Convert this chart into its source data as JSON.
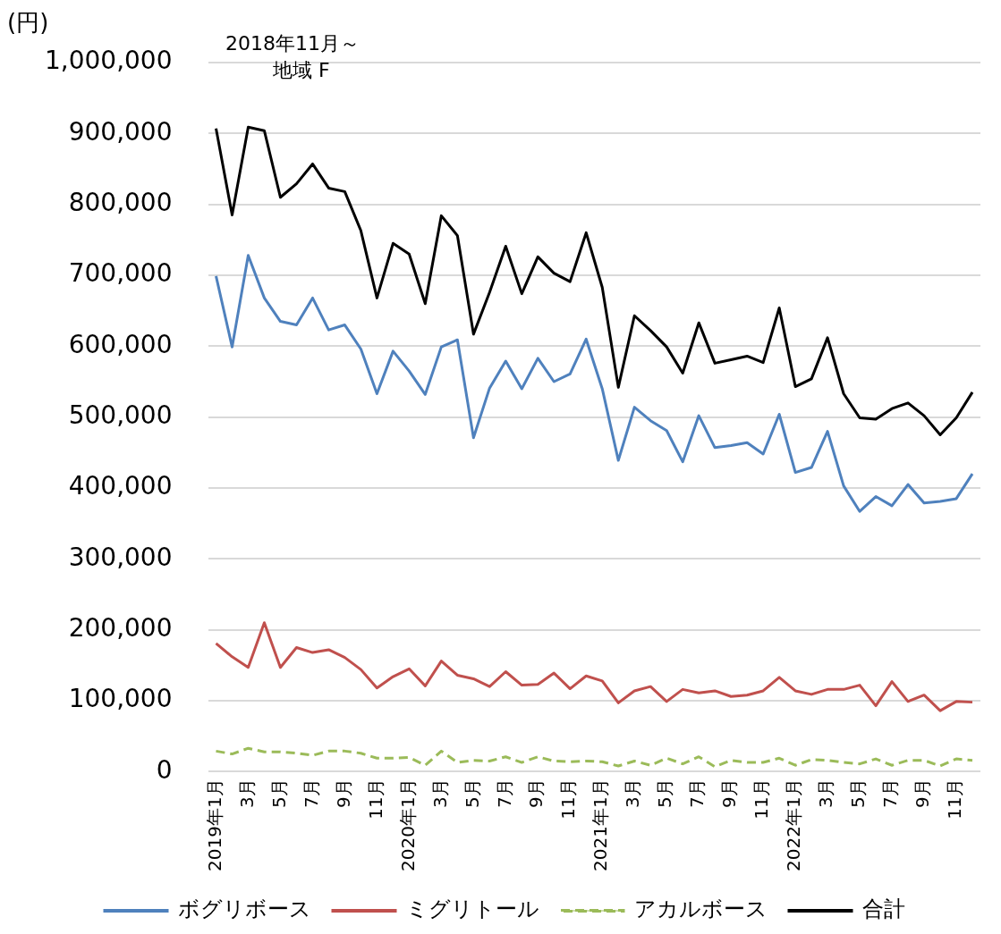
{
  "chart_data": {
    "type": "line",
    "title": "2018年11月～",
    "subtitle": "地域 F",
    "ylabel": "(円)",
    "categories": [
      "2019年1月",
      null,
      "3月",
      null,
      "5月",
      null,
      "7月",
      null,
      "9月",
      null,
      "11月",
      null,
      "2020年1月",
      null,
      "3月",
      null,
      "5月",
      null,
      "7月",
      null,
      "9月",
      null,
      "11月",
      null,
      "2021年1月",
      null,
      "3月",
      null,
      "5月",
      null,
      "7月",
      null,
      "9月",
      null,
      "11月",
      null,
      "2022年1月",
      null,
      "3月",
      null,
      "5月",
      null,
      "7月",
      null,
      "9月",
      null,
      "11月",
      null
    ],
    "series": [
      {
        "name": "ボグリボース",
        "color": "#4f81bd",
        "values": [
          699000,
          599000,
          728000,
          668000,
          635000,
          630000,
          668000,
          623000,
          630000,
          596000,
          533000,
          593000,
          565000,
          532000,
          599000,
          609000,
          471000,
          541000,
          579000,
          540000,
          583000,
          550000,
          561000,
          610000,
          540000,
          439000,
          514000,
          495000,
          481000,
          437000,
          502000,
          457000,
          460000,
          464000,
          448000,
          504000,
          422000,
          429000,
          480000,
          403000,
          367000,
          388000,
          375000,
          405000,
          379000,
          381000,
          385000,
          420000
        ]
      },
      {
        "name": "ミグリトール",
        "color": "#c0504d",
        "values": [
          181000,
          162000,
          147000,
          210000,
          147000,
          175000,
          168000,
          172000,
          161000,
          144000,
          118000,
          134000,
          145000,
          121000,
          156000,
          136000,
          131000,
          120000,
          141000,
          122000,
          123000,
          139000,
          117000,
          135000,
          128000,
          97000,
          114000,
          120000,
          99000,
          116000,
          111000,
          114000,
          106000,
          108000,
          114000,
          133000,
          114000,
          109000,
          116000,
          116000,
          122000,
          93000,
          127000,
          99000,
          108000,
          86000,
          99000,
          98000
        ]
      },
      {
        "name": "アカルボース",
        "color": "#9bbb59",
        "line_style": "dashed",
        "values": [
          29000,
          25000,
          33000,
          28000,
          28000,
          26000,
          23000,
          29000,
          29000,
          26000,
          19000,
          19000,
          20000,
          9000,
          29000,
          13000,
          16000,
          15000,
          21000,
          13000,
          21000,
          15000,
          14000,
          15000,
          14000,
          8000,
          15000,
          9000,
          19000,
          11000,
          21000,
          7000,
          16000,
          13000,
          13000,
          19000,
          9000,
          17000,
          16000,
          13000,
          11000,
          18000,
          9000,
          16000,
          16000,
          8000,
          18000,
          16000
        ]
      },
      {
        "name": "合計",
        "color": "#000000",
        "values": [
          907000,
          785000,
          909000,
          904000,
          810000,
          829000,
          857000,
          823000,
          818000,
          763000,
          668000,
          745000,
          730000,
          660000,
          784000,
          756000,
          617000,
          676000,
          741000,
          674000,
          726000,
          703000,
          691000,
          760000,
          683000,
          542000,
          643000,
          622000,
          599000,
          562000,
          633000,
          576000,
          581000,
          586000,
          577000,
          654000,
          543000,
          554000,
          612000,
          533000,
          499000,
          497000,
          512000,
          520000,
          502000,
          475000,
          499000,
          535000
        ]
      }
    ],
    "ylim": [
      0,
      1000000
    ],
    "yticks": [
      0,
      {
        "value": 100000,
        "label": "100,000"
      },
      {
        "value": 200000,
        "label": "200,000"
      },
      {
        "value": 300000,
        "label": "300,000"
      },
      {
        "value": 400000,
        "label": "400,000"
      },
      {
        "value": 500000,
        "label": "500,000"
      },
      {
        "value": 600000,
        "label": "600,000"
      },
      {
        "value": 700000,
        "label": "700,000"
      },
      {
        "value": 800000,
        "label": "800,000"
      },
      {
        "value": 900000,
        "label": "900,000"
      },
      {
        "value": 1000000,
        "label": "1,000,000"
      }
    ],
    "grid": "y",
    "legend": "bottom",
    "marker": "none",
    "line_style": "solid"
  }
}
